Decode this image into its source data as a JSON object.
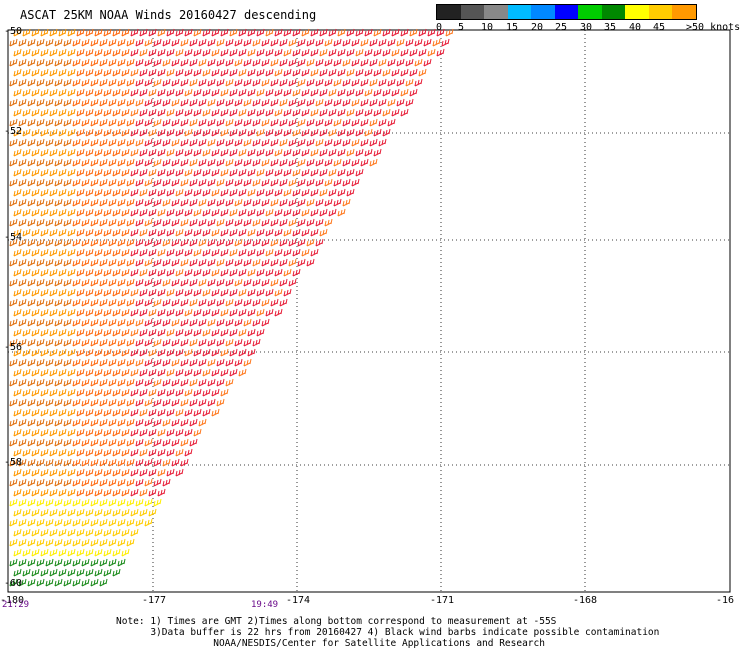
{
  "title": "ASCAT 25KM NOAA Winds 20160427 descending",
  "legend": {
    "colors": [
      "#222222",
      "#555555",
      "#888888",
      "#00bbff",
      "#0088ff",
      "#0000ff",
      "#00cc00",
      "#008800",
      "#ffff00",
      "#ffcc00",
      "#ff9900",
      "#ff6600",
      "#ff2200",
      "#ee1133",
      "#6b3a1a",
      "#b07a50",
      "#444444",
      "#6a0aa0",
      "#3a0060"
    ],
    "labels": [
      "0",
      "5",
      "10",
      "15",
      "20",
      "25",
      "30",
      "35",
      "40",
      "45",
      ">50 knots"
    ]
  },
  "lat_labels": [
    "-50",
    "-52",
    "-54",
    "-56",
    "-58",
    "-60"
  ],
  "lon_labels": [
    "-180",
    "-177",
    "-174",
    "-171",
    "-168",
    "-16"
  ],
  "time_labels": [
    "21:29",
    "19:49"
  ],
  "notes": {
    "line1": "Note: 1) Times are GMT 2)Times along bottom correspond to measurement at -55S",
    "line2": "3)Data buffer is 22 hrs from 20160427 4) Black wind barbs indicate possible contamination",
    "line3": "NOAA/NESDIS/Center for Satellite Applications and Research"
  }
}
